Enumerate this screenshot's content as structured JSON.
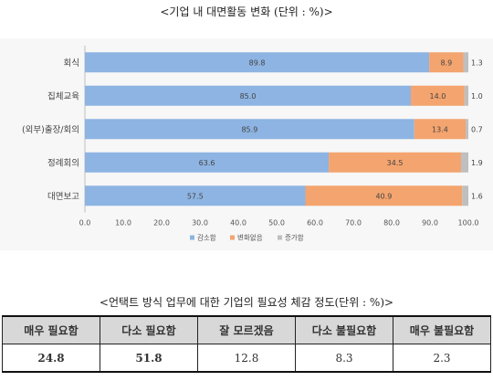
{
  "chart_data": {
    "type": "bar",
    "orientation": "horizontal",
    "stacked": true,
    "title": "<기업 내 대면활동 변화 (단위 : %)>",
    "categories": [
      "회식",
      "집체교육",
      "(외부)출장/회의",
      "정례회의",
      "대면보고"
    ],
    "series": [
      {
        "name": "감소함",
        "color": "#8db4e2",
        "values": [
          89.8,
          85.0,
          85.9,
          63.6,
          57.5
        ]
      },
      {
        "name": "변화없음",
        "color": "#f4a46e",
        "values": [
          8.9,
          14.0,
          13.4,
          34.5,
          40.9
        ]
      },
      {
        "name": "증가함",
        "color": "#bfbfbf",
        "values": [
          1.3,
          1.0,
          0.7,
          1.9,
          1.6
        ]
      }
    ],
    "value_labels": [
      [
        "89.8",
        "8.9",
        "1.3"
      ],
      [
        "85.0",
        "14.0",
        "1.0"
      ],
      [
        "85.9",
        "13.4",
        "0.7"
      ],
      [
        "63.6",
        "34.5",
        "1.9"
      ],
      [
        "57.5",
        "40.9",
        "1.6"
      ]
    ],
    "xlim": [
      0,
      100
    ],
    "xticks": [
      "0.0",
      "10.0",
      "20.0",
      "30.0",
      "40.0",
      "50.0",
      "60.0",
      "70.0",
      "80.0",
      "90.0",
      "100.0"
    ],
    "legend_position": "bottom",
    "grid": false
  },
  "table": {
    "title": "<언택트 방식 업무에 대한 기업의 필요성 체감 정도(단위 : %)>",
    "headers": [
      "매우 필요함",
      "다소 필요함",
      "잘 모르겠음",
      "다소 불필요함",
      "매우 불필요함"
    ],
    "values": [
      "24.8",
      "51.8",
      "12.8",
      "8.3",
      "2.3"
    ]
  }
}
